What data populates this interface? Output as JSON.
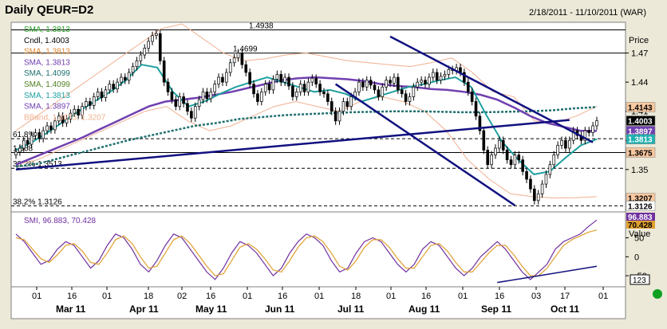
{
  "header": {
    "title": "Daily QEUR=D2",
    "date_range": "2/18/2011 - 11/10/2011 (WAR)"
  },
  "colors": {
    "sma_green": "#2aa02a",
    "sma_orange": "#f0a040",
    "sma_purple": "#7040b0",
    "sma_teal": "#20a0a0",
    "sma_dkgreen": "#508020",
    "bb": "#f0b090",
    "trend": "#101080",
    "smi_purple": "#7030a0",
    "smi_orange": "#e0a030"
  },
  "legend": [
    {
      "text": "SMA, 1.3813",
      "color": "#2aa02a"
    },
    {
      "text": "Cndl, 1.4003",
      "color": "#000000"
    },
    {
      "text": "SMA, 1.3813",
      "color": "#e08830"
    },
    {
      "text": "SMA, 1.3813",
      "color": "#7040b0"
    },
    {
      "text": "SMA, 1.4099",
      "color": "#207070"
    },
    {
      "text": "SMA, 1.4099",
      "color": "#508020"
    },
    {
      "text": "SMA, 1.3813",
      "color": "#20a0a0"
    },
    {
      "text": "SMA, 1.3897",
      "color": "#7040b0"
    },
    {
      "text": "BBand, 1.3675, 1.3207",
      "color": "#f0b090"
    }
  ],
  "chart_data": [
    {
      "type": "candlestick",
      "title": "Daily QEUR=D2",
      "y_axis_label": "Price",
      "ylim": [
        1.308,
        1.5
      ],
      "y_ticks": [
        1.35,
        1.38,
        1.41,
        1.44,
        1.47
      ],
      "x_ticks_top": [
        "01",
        "16",
        "01",
        "18",
        "02",
        "16",
        "01",
        "16",
        "01",
        "18",
        "01",
        "16",
        "01",
        "16",
        "03",
        "17",
        "01"
      ],
      "months": [
        "Mar 11",
        "Apr 11",
        "May 11",
        "Jun 11",
        "Jul 11",
        "Aug 11",
        "Sep 11",
        "Oct 11"
      ],
      "horizontal_levels": [
        {
          "value": 1.4938,
          "label": "1.4938"
        },
        {
          "value": 1.4699,
          "label": "1.4699"
        },
        {
          "value": 1.3817,
          "label": "61.8%"
        },
        {
          "value": 1.3675,
          "label": "1.368"
        },
        {
          "value": 1.3513,
          "label": "38.2% 1.3513"
        },
        {
          "value": 1.3126,
          "label": "38.2% 1.3126"
        }
      ],
      "price_labels": [
        {
          "value": 1.4143,
          "text": "1.4143",
          "bg": "#f8c8a0",
          "fg": "#000000"
        },
        {
          "value": 1.4003,
          "text": "1.4003",
          "bg": "#000000",
          "fg": "#ffffff"
        },
        {
          "value": 1.3897,
          "text": "1.3897",
          "bg": "#7040b0",
          "fg": "#ffffff"
        },
        {
          "value": 1.3813,
          "text": "1.3813",
          "bg": "#20b0b0",
          "fg": "#ffffff"
        },
        {
          "value": 1.3675,
          "text": "1.3675",
          "bg": "#f8c8a0",
          "fg": "#000000"
        },
        {
          "value": 1.3207,
          "text": "1.3207",
          "bg": "#f8c8a0",
          "fg": "#000000"
        },
        {
          "value": 1.3126,
          "text": "1.3126",
          "bg": "#ffffff",
          "fg": "#000000"
        }
      ],
      "closes": [
        1.368,
        1.372,
        1.38,
        1.376,
        1.385,
        1.388,
        1.382,
        1.39,
        1.395,
        1.391,
        1.4,
        1.405,
        1.398,
        1.402,
        1.408,
        1.412,
        1.406,
        1.415,
        1.42,
        1.416,
        1.425,
        1.43,
        1.424,
        1.432,
        1.438,
        1.433,
        1.44,
        1.445,
        1.442,
        1.45,
        1.456,
        1.462,
        1.468,
        1.475,
        1.482,
        1.488,
        1.49,
        1.462,
        1.44,
        1.43,
        1.422,
        1.415,
        1.425,
        1.418,
        1.41,
        1.403,
        1.415,
        1.422,
        1.43,
        1.423,
        1.43,
        1.438,
        1.445,
        1.44,
        1.45,
        1.46,
        1.465,
        1.47,
        1.458,
        1.45,
        1.438,
        1.428,
        1.42,
        1.43,
        1.438,
        1.432,
        1.443,
        1.448,
        1.44,
        1.445,
        1.436,
        1.425,
        1.43,
        1.438,
        1.43,
        1.44,
        1.444,
        1.438,
        1.43,
        1.428,
        1.42,
        1.41,
        1.4,
        1.41,
        1.42,
        1.415,
        1.425,
        1.43,
        1.44,
        1.435,
        1.442,
        1.437,
        1.432,
        1.425,
        1.435,
        1.442,
        1.439,
        1.445,
        1.432,
        1.428,
        1.42,
        1.425,
        1.435,
        1.44,
        1.442,
        1.438,
        1.445,
        1.45,
        1.442,
        1.446,
        1.448,
        1.453,
        1.452,
        1.455,
        1.45,
        1.44,
        1.43,
        1.42,
        1.405,
        1.39,
        1.37,
        1.355,
        1.365,
        1.372,
        1.38,
        1.37,
        1.36,
        1.355,
        1.365,
        1.36,
        1.348,
        1.34,
        1.33,
        1.318,
        1.325,
        1.335,
        1.345,
        1.355,
        1.365,
        1.375,
        1.38,
        1.372,
        1.38,
        1.39,
        1.385,
        1.38,
        1.39,
        1.388,
        1.395,
        1.4003
      ],
      "sma_purple": [
        1.355,
        1.362,
        1.369,
        1.376,
        1.383,
        1.391,
        1.399,
        1.407,
        1.415,
        1.42,
        1.422,
        1.424,
        1.427,
        1.43,
        1.434,
        1.438,
        1.442,
        1.444,
        1.445,
        1.444,
        1.443,
        1.441,
        1.438,
        1.436,
        1.435,
        1.433,
        1.432,
        1.43,
        1.427,
        1.422,
        1.414,
        1.405,
        1.398,
        1.394,
        1.39,
        1.3897
      ],
      "sma_teal": [
        1.37,
        1.378,
        1.388,
        1.399,
        1.41,
        1.42,
        1.43,
        1.442,
        1.458,
        1.455,
        1.43,
        1.415,
        1.42,
        1.428,
        1.435,
        1.44,
        1.445,
        1.44,
        1.435,
        1.43,
        1.432,
        1.428,
        1.42,
        1.425,
        1.43,
        1.435,
        1.438,
        1.442,
        1.445,
        1.435,
        1.405,
        1.378,
        1.36,
        1.345,
        1.348,
        1.362,
        1.375,
        1.3813
      ],
      "sma_long": [
        1.353,
        1.356,
        1.362,
        1.368,
        1.374,
        1.38,
        1.385,
        1.39,
        1.395,
        1.398,
        1.402,
        1.404,
        1.406,
        1.407,
        1.408,
        1.409,
        1.4095,
        1.41,
        1.4099,
        1.4095,
        1.409,
        1.409,
        1.4095,
        1.4099,
        1.411,
        1.413,
        1.4143
      ],
      "bb_upper": [
        1.39,
        1.405,
        1.42,
        1.435,
        1.45,
        1.465,
        1.48,
        1.495,
        1.5,
        1.485,
        1.47,
        1.462,
        1.464,
        1.468,
        1.47,
        1.466,
        1.462,
        1.46,
        1.458,
        1.456,
        1.46,
        1.465,
        1.45,
        1.43,
        1.425,
        1.4,
        1.398,
        1.405,
        1.415
      ],
      "bb_lower": [
        1.355,
        1.36,
        1.37,
        1.38,
        1.39,
        1.4,
        1.41,
        1.415,
        1.4,
        1.39,
        1.395,
        1.405,
        1.415,
        1.42,
        1.415,
        1.41,
        1.42,
        1.425,
        1.42,
        1.41,
        1.39,
        1.36,
        1.34,
        1.325,
        1.322,
        1.3207,
        1.321,
        1.322
      ],
      "trendlines": [
        {
          "name": "upper_channel",
          "from": [
            96,
            1.487
          ],
          "to": [
            148,
            1.378
          ]
        },
        {
          "name": "lower_channel",
          "from": [
            82,
            1.438
          ],
          "to": [
            128,
            1.313
          ]
        },
        {
          "name": "apr_support",
          "from": [
            0,
            1.35
          ],
          "to": [
            142,
            1.401
          ]
        }
      ]
    },
    {
      "type": "line",
      "title": "SMI, 96.883, 70.428",
      "y_axis_label": "Value",
      "ylim": [
        -75,
        110
      ],
      "y_ticks": [
        50,
        0,
        -50
      ],
      "last_values": [
        {
          "text": "96.883",
          "bg": "#7030a0",
          "fg": "#ffffff"
        },
        {
          "text": "70.428",
          "bg": "#e0a030",
          "fg": "#000000"
        }
      ],
      "scale_box": "123",
      "series": [
        {
          "name": "SMI",
          "values": [
            60,
            40,
            10,
            -20,
            -10,
            20,
            40,
            30,
            0,
            -30,
            -10,
            30,
            60,
            50,
            20,
            -20,
            -40,
            -10,
            30,
            60,
            50,
            20,
            -10,
            -40,
            -60,
            -30,
            10,
            40,
            30,
            10,
            -20,
            -50,
            -30,
            10,
            40,
            60,
            50,
            30,
            -10,
            -40,
            -30,
            10,
            40,
            50,
            40,
            10,
            -20,
            -40,
            -20,
            20,
            40,
            30,
            0,
            -30,
            -50,
            -30,
            0,
            20,
            40,
            20,
            -10,
            -40,
            -60,
            -40,
            -20,
            20,
            40,
            50,
            60,
            80,
            96.883
          ]
        },
        {
          "name": "SMI signal",
          "values": [
            50,
            45,
            20,
            -5,
            -15,
            5,
            30,
            35,
            15,
            -15,
            -20,
            10,
            45,
            55,
            35,
            0,
            -30,
            -25,
            10,
            45,
            55,
            35,
            5,
            -25,
            -50,
            -45,
            -10,
            25,
            35,
            20,
            -5,
            -35,
            -40,
            -10,
            25,
            50,
            55,
            40,
            10,
            -25,
            -35,
            -10,
            25,
            45,
            45,
            25,
            -5,
            -30,
            -30,
            0,
            30,
            35,
            15,
            -15,
            -40,
            -40,
            -15,
            10,
            30,
            30,
            5,
            -25,
            -50,
            -50,
            -30,
            0,
            30,
            45,
            55,
            65,
            70.428
          ]
        }
      ],
      "trendlines": [
        {
          "name": "smi_support",
          "from": [
            58,
            -68
          ],
          "to": [
            70,
            -25
          ]
        }
      ]
    }
  ]
}
